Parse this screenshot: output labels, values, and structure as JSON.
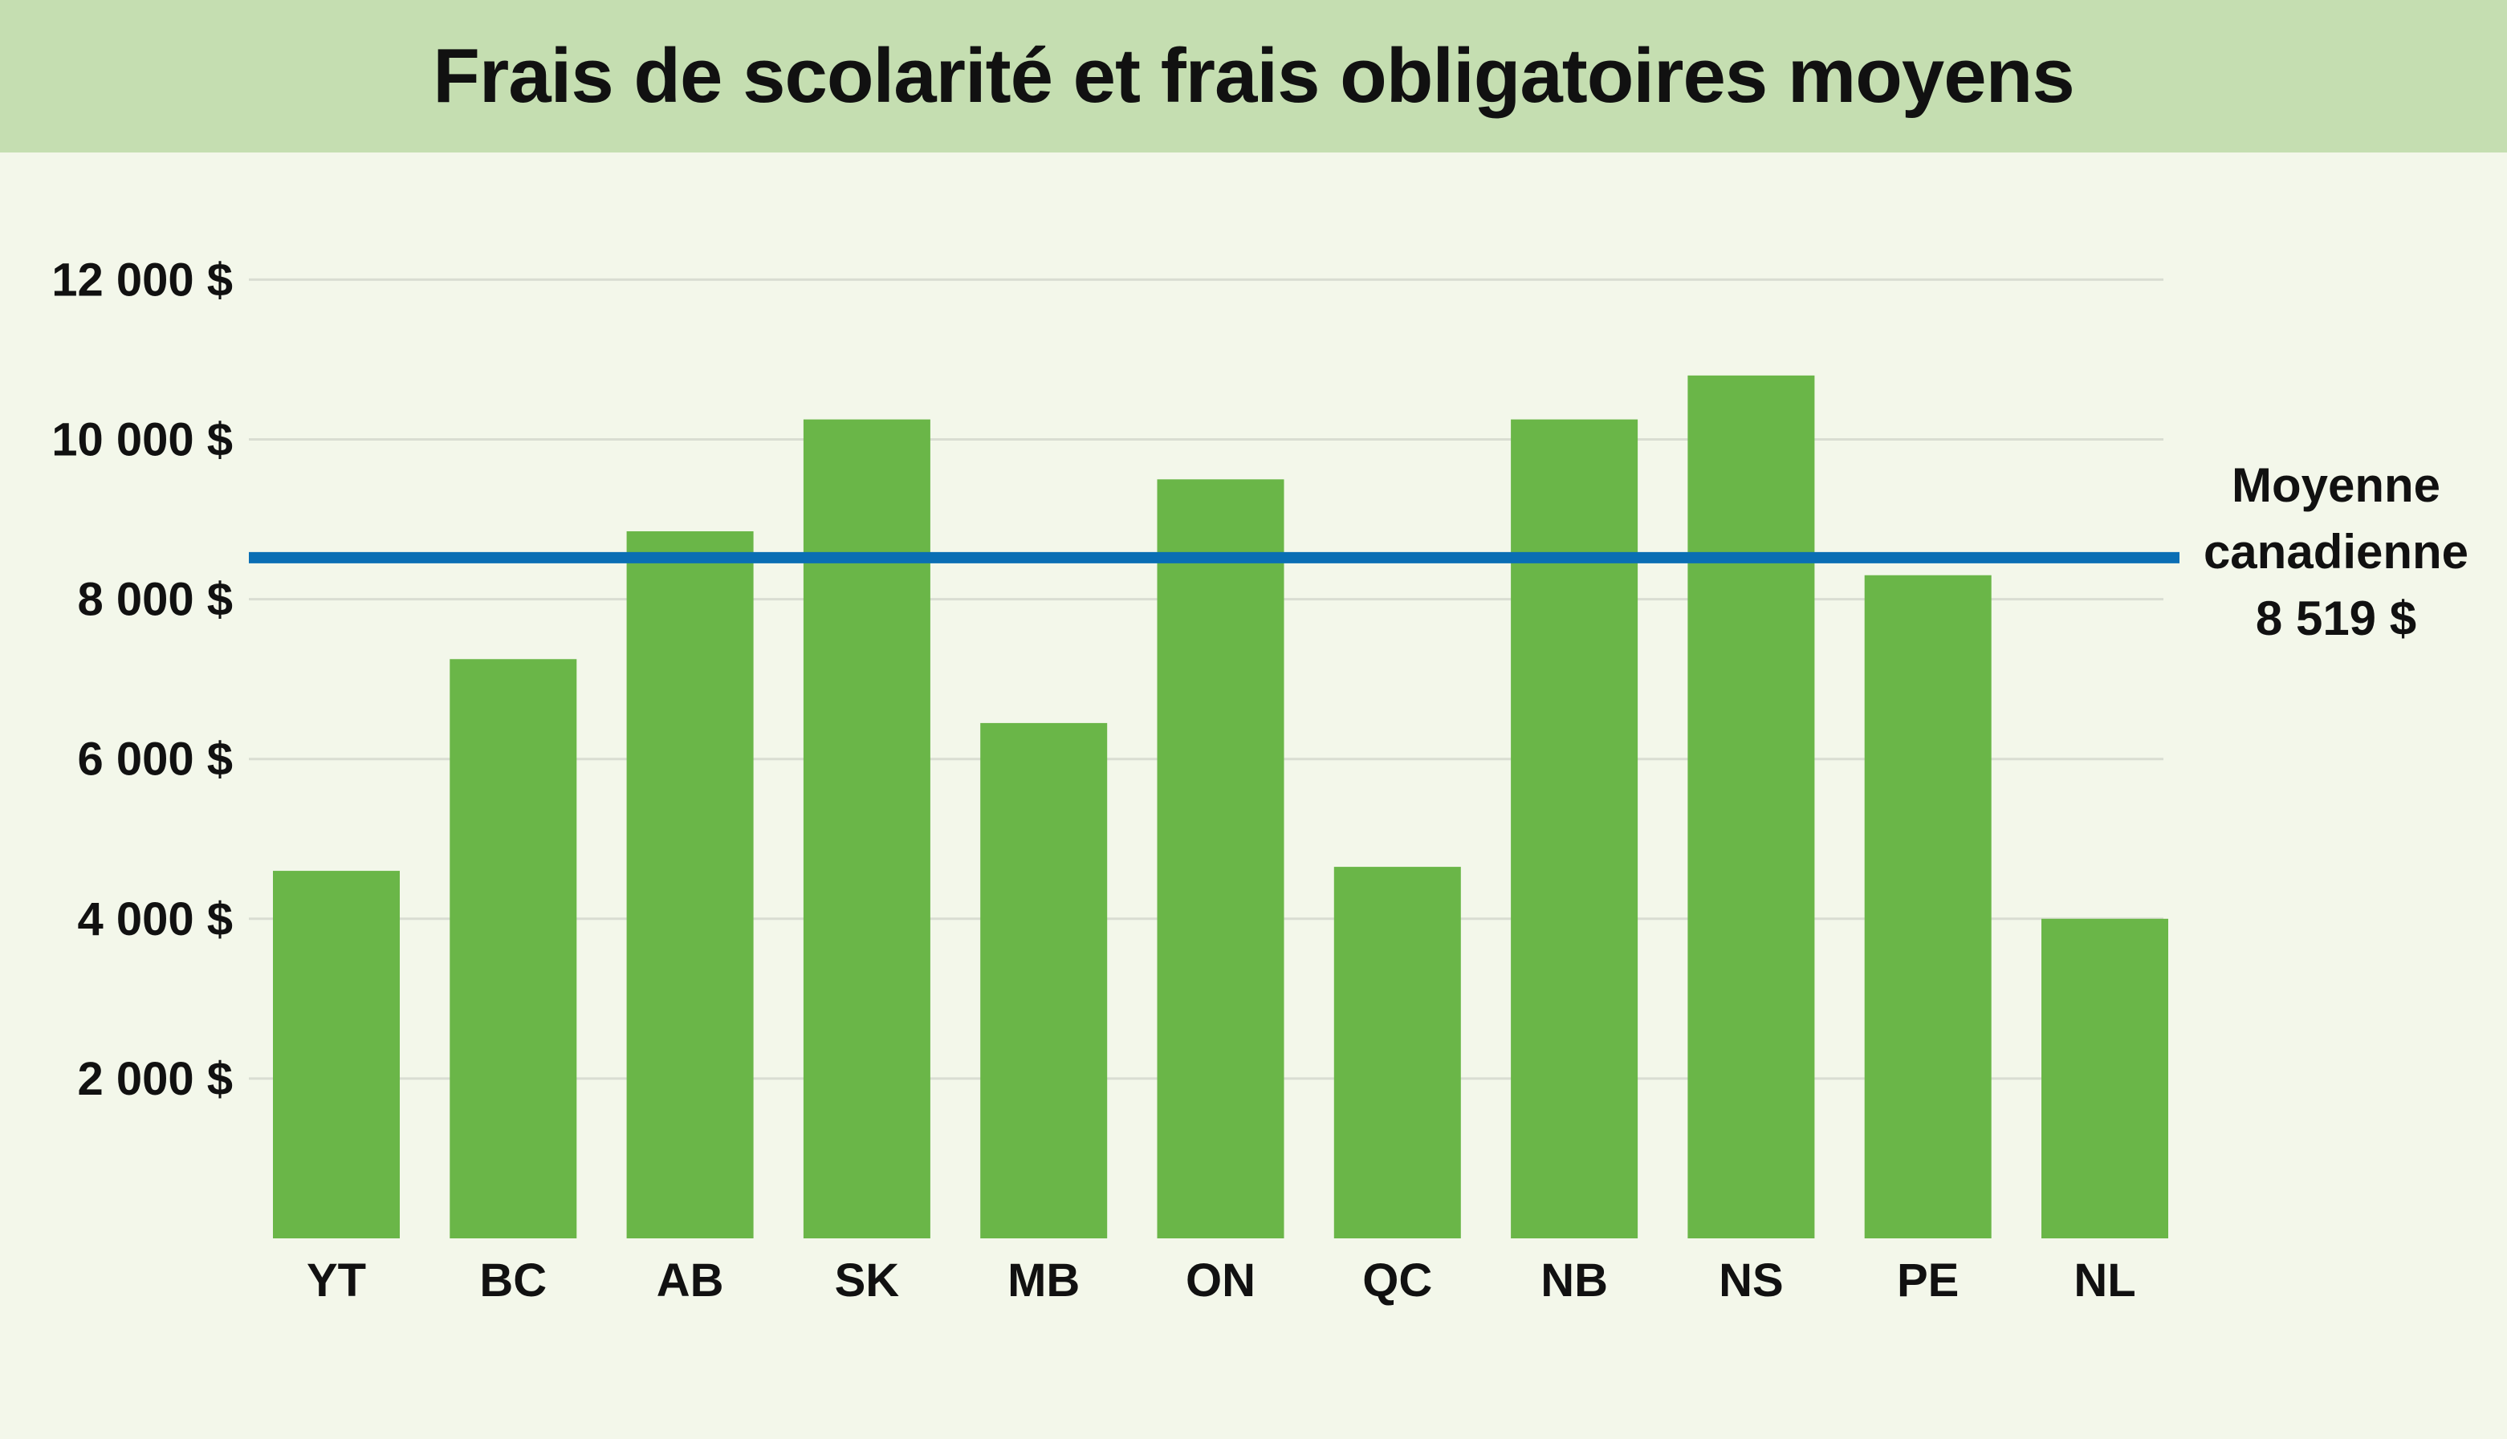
{
  "chart_data": {
    "type": "bar",
    "title": "Frais de scolarité et frais obligatoires moyens",
    "categories": [
      "YT",
      "BC",
      "AB",
      "SK",
      "MB",
      "ON",
      "QC",
      "NB",
      "NS",
      "PE",
      "NL"
    ],
    "values": [
      4600,
      7250,
      8850,
      10250,
      6450,
      9500,
      4650,
      10250,
      10800,
      8300,
      4000
    ],
    "ylim": [
      0,
      12000
    ],
    "yticks": [
      2000,
      4000,
      6000,
      8000,
      10000,
      12000
    ],
    "ytick_labels": [
      "2 000 $",
      "4 000 $",
      "6 000 $",
      "8 000 $",
      "10 000 $",
      "12 000 $"
    ],
    "grid": true,
    "reference_line": {
      "value": 8519,
      "label_lines": [
        "Moyenne",
        "canadienne",
        "8 519 $"
      ],
      "color": "#0a6eb4"
    },
    "colors": {
      "bar": "#6ab648",
      "grid": "#d9ddd2",
      "banner": "#c5deb1",
      "background": "#f3f7ea"
    }
  }
}
